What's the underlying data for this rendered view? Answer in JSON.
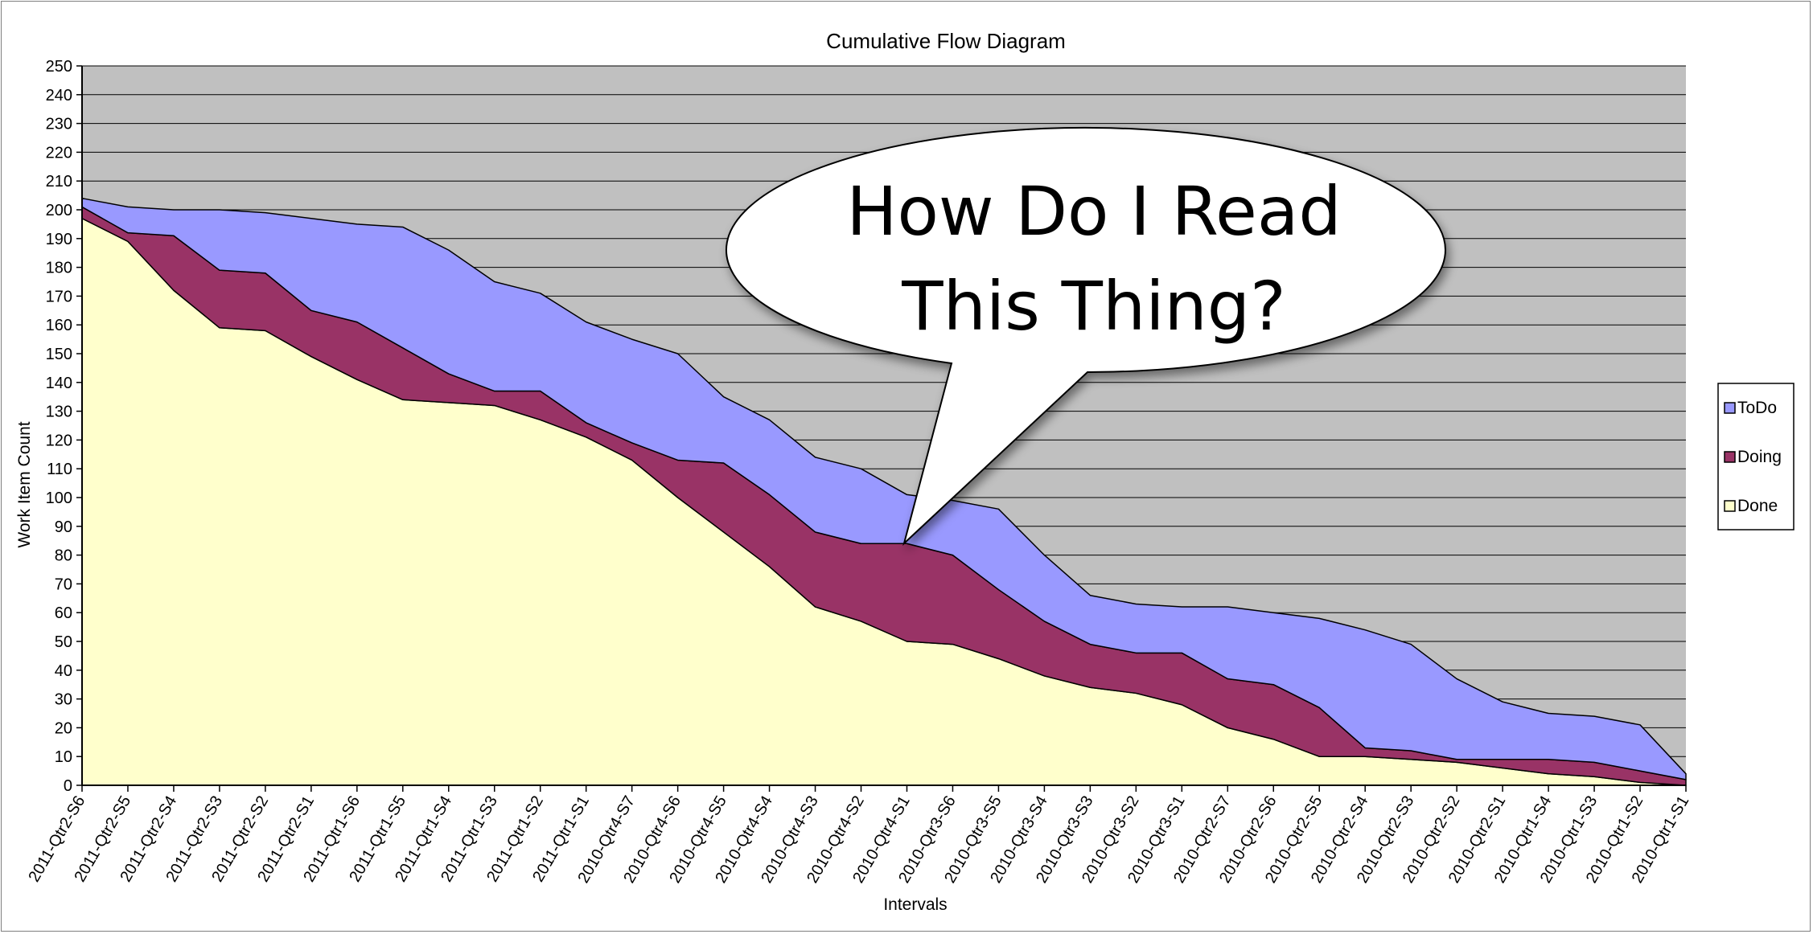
{
  "chart_data": {
    "type": "area",
    "stacked": true,
    "title": "Cumulative Flow Diagram",
    "xlabel": "Intervals",
    "ylabel": "Work Item Count",
    "ylim": [
      0,
      250
    ],
    "ytick_step": 10,
    "grid": true,
    "legend_position": "right",
    "categories": [
      "2011-Qtr2-S6",
      "2011-Qtr2-S5",
      "2011-Qtr2-S4",
      "2011-Qtr2-S3",
      "2011-Qtr2-S2",
      "2011-Qtr2-S1",
      "2011-Qtr1-S6",
      "2011-Qtr1-S5",
      "2011-Qtr1-S4",
      "2011-Qtr1-S3",
      "2011-Qtr1-S2",
      "2011-Qtr1-S1",
      "2010-Qtr4-S7",
      "2010-Qtr4-S6",
      "2010-Qtr4-S5",
      "2010-Qtr4-S4",
      "2010-Qtr4-S3",
      "2010-Qtr4-S2",
      "2010-Qtr4-S1",
      "2010-Qtr3-S6",
      "2010-Qtr3-S5",
      "2010-Qtr3-S4",
      "2010-Qtr3-S3",
      "2010-Qtr3-S2",
      "2010-Qtr3-S1",
      "2010-Qtr2-S7",
      "2010-Qtr2-S6",
      "2010-Qtr2-S5",
      "2010-Qtr2-S4",
      "2010-Qtr2-S3",
      "2010-Qtr2-S2",
      "2010-Qtr2-S1",
      "2010-Qtr1-S4",
      "2010-Qtr1-S3",
      "2010-Qtr1-S2",
      "2010-Qtr1-S1"
    ],
    "series": [
      {
        "name": "Done",
        "color": "#ffffcc",
        "values": [
          197,
          189,
          172,
          159,
          158,
          149,
          141,
          134,
          133,
          132,
          127,
          121,
          113,
          100,
          88,
          76,
          62,
          57,
          50,
          49,
          44,
          38,
          34,
          32,
          28,
          20,
          16,
          10,
          10,
          9,
          8,
          6,
          4,
          3,
          1,
          0
        ]
      },
      {
        "name": "Doing",
        "color": "#993366",
        "values": [
          4,
          3,
          19,
          20,
          20,
          16,
          20,
          18,
          10,
          5,
          10,
          5,
          6,
          13,
          24,
          25,
          26,
          27,
          34,
          31,
          24,
          19,
          15,
          14,
          18,
          17,
          19,
          17,
          3,
          3,
          1,
          3,
          5,
          5,
          4,
          2
        ]
      },
      {
        "name": "ToDo",
        "color": "#9999ff",
        "values": [
          3,
          9,
          9,
          21,
          21,
          32,
          34,
          42,
          43,
          38,
          34,
          35,
          36,
          37,
          23,
          26,
          26,
          26,
          17,
          19,
          28,
          23,
          17,
          17,
          16,
          25,
          25,
          31,
          41,
          37,
          28,
          20,
          16,
          16,
          16,
          2
        ]
      }
    ],
    "annotation": {
      "text_lines": [
        "How Do I Read",
        "This Thing?"
      ]
    }
  },
  "colors": {
    "plot_background": "#c0c0c0",
    "gridline": "#000000",
    "outline": "#000000",
    "callout_fill": "#ffffff"
  }
}
